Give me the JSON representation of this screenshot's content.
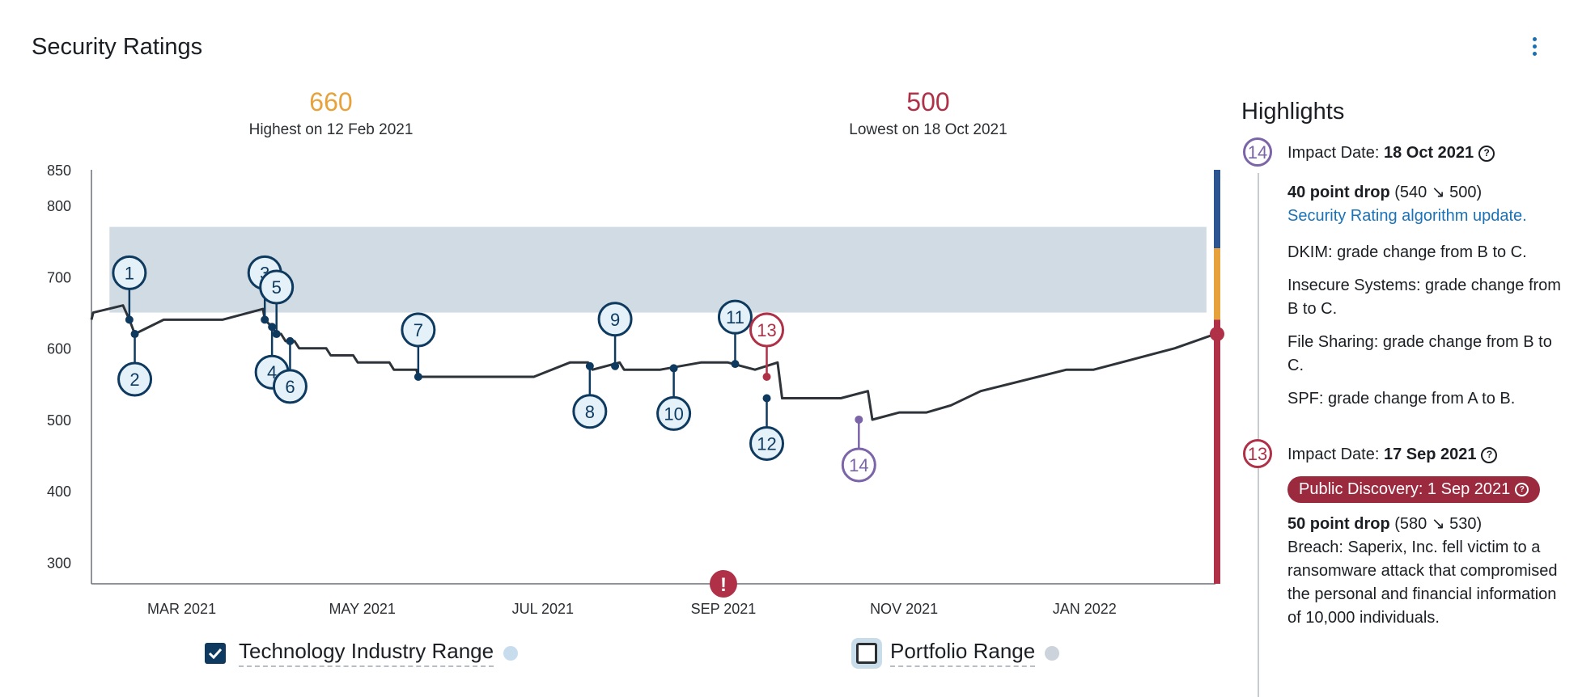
{
  "page": {
    "title": "Security Ratings"
  },
  "stats": {
    "highest": {
      "value": "660",
      "label": "Highest on 12 Feb 2021",
      "color": "#e8a23c"
    },
    "lowest": {
      "value": "500",
      "label": "Lowest on 18 Oct 2021",
      "color": "#b03047"
    }
  },
  "chart_data": {
    "type": "line",
    "title": "Security Ratings",
    "x_axis": {
      "ticks": [
        "MAR 2021",
        "MAY 2021",
        "JUL 2021",
        "SEP 2021",
        "NOV 2021",
        "JAN 2022"
      ],
      "tick_months": [
        2,
        4,
        6,
        8,
        10,
        12
      ],
      "range_months": [
        1.0,
        13.45
      ]
    },
    "y_axis": {
      "ticks": [
        300,
        400,
        500,
        600,
        700,
        800,
        850
      ],
      "ylim": [
        270,
        850
      ]
    },
    "series": [
      {
        "name": "Security Rating",
        "color": "#2d3339",
        "points": [
          [
            1.0,
            640
          ],
          [
            1.02,
            650
          ],
          [
            1.35,
            660
          ],
          [
            1.42,
            640
          ],
          [
            1.48,
            620
          ],
          [
            1.8,
            640
          ],
          [
            2.45,
            640
          ],
          [
            2.9,
            655
          ],
          [
            2.92,
            640
          ],
          [
            3.0,
            630
          ],
          [
            3.05,
            620
          ],
          [
            3.1,
            620
          ],
          [
            3.15,
            610
          ],
          [
            3.25,
            610
          ],
          [
            3.3,
            600
          ],
          [
            3.6,
            600
          ],
          [
            3.65,
            590
          ],
          [
            3.9,
            590
          ],
          [
            3.95,
            580
          ],
          [
            4.3,
            580
          ],
          [
            4.35,
            570
          ],
          [
            4.6,
            570
          ],
          [
            4.62,
            560
          ],
          [
            5.9,
            560
          ],
          [
            6.3,
            580
          ],
          [
            6.5,
            580
          ],
          [
            6.55,
            570
          ],
          [
            6.85,
            580
          ],
          [
            6.9,
            570
          ],
          [
            7.3,
            570
          ],
          [
            7.75,
            580
          ],
          [
            8.05,
            580
          ],
          [
            8.35,
            570
          ],
          [
            8.6,
            580
          ],
          [
            8.65,
            530
          ],
          [
            9.3,
            530
          ],
          [
            9.6,
            540
          ],
          [
            9.65,
            500
          ],
          [
            9.95,
            510
          ],
          [
            10.25,
            510
          ],
          [
            10.52,
            520
          ],
          [
            10.85,
            540
          ],
          [
            11.8,
            570
          ],
          [
            12.1,
            570
          ],
          [
            13.0,
            600
          ],
          [
            13.45,
            620
          ]
        ]
      }
    ],
    "industry_range": {
      "name": "Technology Industry Range",
      "low": 650,
      "high": 770,
      "start": 1.2,
      "end": 13.35,
      "color": "#d0dbe3"
    },
    "events": [
      {
        "id": "1",
        "x": 1.42,
        "y": 640,
        "dir": "up",
        "color": "#0f3a5f"
      },
      {
        "id": "2",
        "x": 1.48,
        "y": 620,
        "dir": "down",
        "color": "#0f3a5f"
      },
      {
        "id": "3",
        "x": 2.92,
        "y": 640,
        "dir": "up",
        "color": "#0f3a5f"
      },
      {
        "id": "4",
        "x": 3.0,
        "y": 630,
        "dir": "down",
        "color": "#0f3a5f"
      },
      {
        "id": "5",
        "x": 3.05,
        "y": 620,
        "dir": "up",
        "color": "#0f3a5f"
      },
      {
        "id": "6",
        "x": 3.2,
        "y": 610,
        "dir": "down",
        "color": "#0f3a5f"
      },
      {
        "id": "7",
        "x": 4.62,
        "y": 560,
        "dir": "up",
        "color": "#0f3a5f"
      },
      {
        "id": "8",
        "x": 6.52,
        "y": 575,
        "dir": "down",
        "color": "#0f3a5f"
      },
      {
        "id": "9",
        "x": 6.8,
        "y": 575,
        "dir": "up",
        "color": "#0f3a5f"
      },
      {
        "id": "10",
        "x": 7.45,
        "y": 572,
        "dir": "down",
        "color": "#0f3a5f"
      },
      {
        "id": "11",
        "x": 8.13,
        "y": 578,
        "dir": "up",
        "color": "#0f3a5f"
      },
      {
        "id": "12",
        "x": 8.48,
        "y": 530,
        "dir": "down",
        "color": "#0f3a5f"
      },
      {
        "id": "13",
        "x": 8.48,
        "y": 560,
        "dir": "up",
        "color": "#b03047"
      },
      {
        "id": "14",
        "x": 9.5,
        "y": 500,
        "dir": "down",
        "color": "#7b64a8"
      }
    ],
    "alert_marker": {
      "x": 8.0,
      "symbol": "!",
      "color": "#b03047"
    },
    "rating_scale": [
      {
        "from": 740,
        "to": 850,
        "color": "#2d5591"
      },
      {
        "from": 640,
        "to": 740,
        "color": "#e8a23c"
      },
      {
        "from": 270,
        "to": 640,
        "color": "#b03047"
      }
    ],
    "current": {
      "y": 620,
      "color": "#b03047"
    }
  },
  "legend": {
    "industry": {
      "label": "Technology Industry Range",
      "checked": true,
      "swatch_color": "#c7ddee"
    },
    "portfolio": {
      "label": "Portfolio Range",
      "checked": false,
      "swatch_color": "#ccd3db"
    }
  },
  "highlights": {
    "title": "Highlights",
    "items": [
      {
        "id": "14",
        "color": "#7b64a8",
        "impact_label": "Impact Date:",
        "impact_date": "18 Oct 2021",
        "drop_title": "40 point drop",
        "drop_from": "540",
        "drop_arrow": "↘",
        "drop_to": "500",
        "link": "Security Rating algorithm update.",
        "changes": [
          "DKIM: grade change from B to C.",
          "Insecure Systems: grade change from B to C.",
          "File Sharing: grade change from B to C.",
          "SPF: grade change from A to B."
        ]
      },
      {
        "id": "13",
        "color": "#b03047",
        "impact_label": "Impact Date:",
        "impact_date": "17 Sep 2021",
        "pill": "Public Discovery: 1 Sep 2021",
        "drop_title": "50 point drop",
        "drop_from": "580",
        "drop_arrow": "↘",
        "drop_to": "530",
        "description": "Breach: Saperix, Inc. fell victim to a ransomware attack that compromised the personal and financial information of 10,000 individuals."
      }
    ]
  }
}
